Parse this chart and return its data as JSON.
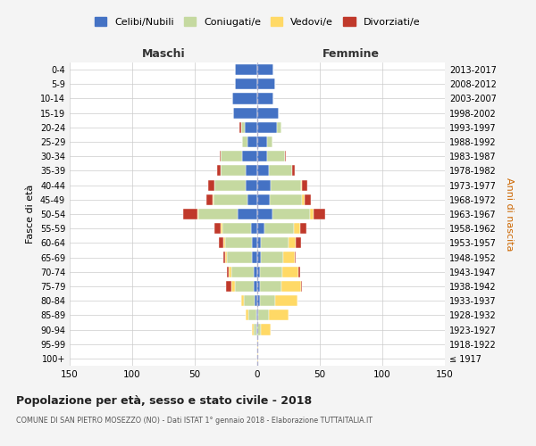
{
  "age_groups": [
    "100+",
    "95-99",
    "90-94",
    "85-89",
    "80-84",
    "75-79",
    "70-74",
    "65-69",
    "60-64",
    "55-59",
    "50-54",
    "45-49",
    "40-44",
    "35-39",
    "30-34",
    "25-29",
    "20-24",
    "15-19",
    "10-14",
    "5-9",
    "0-4"
  ],
  "birth_years": [
    "≤ 1917",
    "1918-1922",
    "1923-1927",
    "1928-1932",
    "1933-1937",
    "1938-1942",
    "1943-1947",
    "1948-1952",
    "1953-1957",
    "1958-1962",
    "1963-1967",
    "1968-1972",
    "1973-1977",
    "1978-1982",
    "1983-1987",
    "1988-1992",
    "1993-1997",
    "1998-2002",
    "2003-2007",
    "2008-2012",
    "2013-2017"
  ],
  "colors": {
    "celibi": "#4472c4",
    "coniugati": "#c5d9a0",
    "vedovi": "#ffd966",
    "divorziati": "#c0392b",
    "grid": "#cccccc",
    "dashed": "#b0b0cc"
  },
  "maschi": {
    "celibi": [
      0,
      0,
      1,
      1,
      2,
      3,
      3,
      4,
      4,
      5,
      16,
      8,
      9,
      9,
      12,
      8,
      10,
      19,
      20,
      18,
      18
    ],
    "coniugati": [
      0,
      0,
      2,
      6,
      9,
      15,
      18,
      20,
      22,
      23,
      31,
      27,
      25,
      20,
      17,
      4,
      3,
      0,
      0,
      0,
      0
    ],
    "vedovi": [
      0,
      0,
      1,
      2,
      2,
      3,
      2,
      2,
      1,
      1,
      1,
      1,
      0,
      0,
      0,
      0,
      0,
      0,
      0,
      0,
      0
    ],
    "divorziati": [
      0,
      0,
      0,
      0,
      0,
      4,
      1,
      1,
      4,
      5,
      11,
      5,
      5,
      3,
      1,
      0,
      1,
      0,
      0,
      0,
      0
    ]
  },
  "femmine": {
    "celibi": [
      0,
      0,
      0,
      1,
      2,
      2,
      2,
      3,
      3,
      6,
      12,
      10,
      11,
      9,
      8,
      8,
      16,
      17,
      13,
      14,
      13
    ],
    "coniugati": [
      0,
      0,
      3,
      8,
      12,
      17,
      18,
      18,
      22,
      23,
      30,
      26,
      24,
      19,
      14,
      4,
      3,
      0,
      0,
      0,
      0
    ],
    "vedovi": [
      1,
      1,
      8,
      16,
      18,
      16,
      13,
      9,
      6,
      5,
      3,
      2,
      1,
      0,
      0,
      0,
      0,
      0,
      0,
      0,
      0
    ],
    "divorziati": [
      0,
      0,
      0,
      0,
      0,
      1,
      1,
      1,
      4,
      5,
      9,
      5,
      4,
      2,
      1,
      0,
      0,
      0,
      0,
      0,
      0
    ]
  },
  "title": "Popolazione per età, sesso e stato civile - 2018",
  "subtitle": "COMUNE DI SAN PIETRO MOSEZZO (NO) - Dati ISTAT 1° gennaio 2018 - Elaborazione TUTTAITALIA.IT",
  "xlabel_left": "Maschi",
  "xlabel_right": "Femmine",
  "ylabel_left": "Fasce di età",
  "ylabel_right": "Anni di nascita",
  "legend_labels": [
    "Celibi/Nubili",
    "Coniugati/e",
    "Vedovi/e",
    "Divorziati/e"
  ],
  "xlim": 150,
  "bg_color": "#f4f4f4",
  "plot_bg": "#ffffff"
}
